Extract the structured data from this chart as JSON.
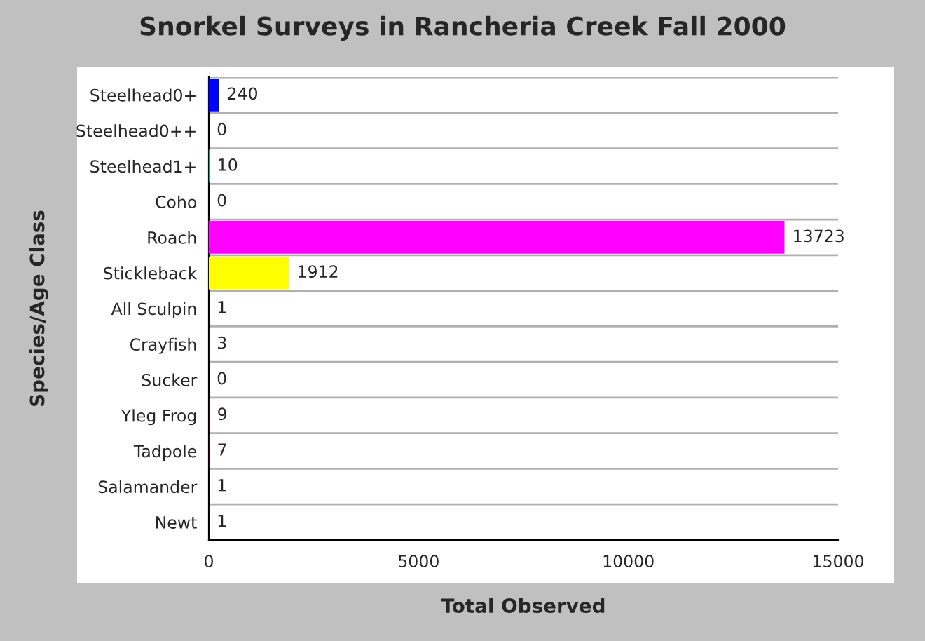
{
  "chart_data": {
    "type": "bar",
    "orientation": "horizontal",
    "title": "Snorkel Surveys in Rancheria Creek Fall 2000",
    "xlabel": "Total Observed",
    "ylabel": "Species/Age Class",
    "categories": [
      "Steelhead0+",
      "Steelhead0++",
      "Steelhead1+",
      "Coho",
      "Roach",
      "Stickleback",
      "All Sculpin",
      "Crayfish",
      "Sucker",
      "Yleg Frog",
      "Tadpole",
      "Salamander",
      "Newt"
    ],
    "values": [
      240,
      0,
      10,
      0,
      13723,
      1912,
      1,
      3,
      0,
      9,
      7,
      1,
      1
    ],
    "colors": [
      "#0000ff",
      "#ff0000",
      "#00ffff",
      "#00ff00",
      "#ff00ff",
      "#ffff00",
      "#808080",
      "#008000",
      "#000080",
      "#800000",
      "#800080",
      "#008080",
      "#808000"
    ],
    "xlim": [
      0,
      15000
    ],
    "xticks": [
      0,
      5000,
      10000,
      15000
    ],
    "grid": "y",
    "data_labels": true
  }
}
